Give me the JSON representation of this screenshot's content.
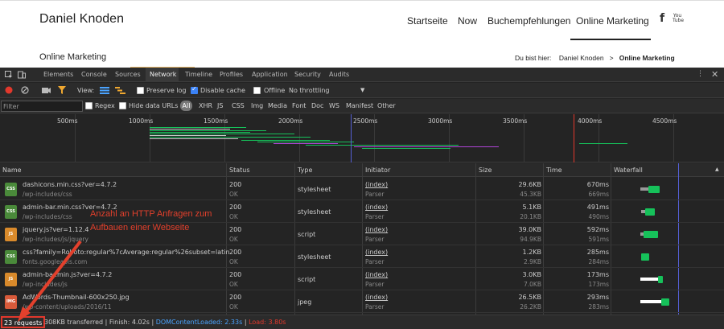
{
  "site": {
    "logo": "Daniel Knoden",
    "nav": [
      "Startseite",
      "Now",
      "Buchempfehlungen",
      "Online Marketing"
    ],
    "social": [
      "facebook-icon",
      "youtube-icon"
    ],
    "youtube_text": "You Tube",
    "facebook_glyph": "f",
    "subtitle": "Online Marketing",
    "breadcrumb_prefix": "Du bist hier:",
    "breadcrumb_home": "Daniel Knoden",
    "breadcrumb_sep": ">",
    "breadcrumb_current": "Online Marketing"
  },
  "devtools": {
    "tabs": [
      "Elements",
      "Console",
      "Sources",
      "Network",
      "Timeline",
      "Profiles",
      "Application",
      "Security",
      "Audits"
    ],
    "active_tab": "Network",
    "toolbar": {
      "view_label": "View:",
      "preserve_log": "Preserve log",
      "disable_cache": "Disable cache",
      "offline": "Offline",
      "throttling": "No throttling"
    },
    "filter": {
      "placeholder": "Filter",
      "regex": "Regex",
      "hide_data_urls": "Hide data URLs",
      "types": [
        "All",
        "XHR",
        "JS",
        "CSS",
        "Img",
        "Media",
        "Font",
        "Doc",
        "WS",
        "Manifest",
        "Other"
      ]
    },
    "overview_ticks": [
      "500ms",
      "1000ms",
      "1500ms",
      "2000ms",
      "2500ms",
      "3000ms",
      "3500ms",
      "4000ms",
      "4500ms"
    ],
    "columns": [
      "Name",
      "Status",
      "Type",
      "Initiator",
      "Size",
      "Time",
      "Waterfall"
    ],
    "rows": [
      {
        "name": "dashicons.min.css?ver=4.7.2",
        "path": "/wp-includes/css",
        "status": "200",
        "status_text": "OK",
        "type": "stylesheet",
        "initiator": "(index)",
        "initiator_sub": "Parser",
        "size": "29.6KB",
        "size_sub": "45.3KB",
        "time": "670ms",
        "time_sub": "669ms",
        "icon": "css-file-icon"
      },
      {
        "name": "admin-bar.min.css?ver=4.7.2",
        "path": "/wp-includes/css",
        "status": "200",
        "status_text": "OK",
        "type": "stylesheet",
        "initiator": "(index)",
        "initiator_sub": "Parser",
        "size": "5.1KB",
        "size_sub": "20.1KB",
        "time": "491ms",
        "time_sub": "490ms",
        "icon": "css-file-icon"
      },
      {
        "name": "jquery.js?ver=1.12.4",
        "path": "/wp-includes/js/jquery",
        "status": "200",
        "status_text": "OK",
        "type": "script",
        "initiator": "(index)",
        "initiator_sub": "Parser",
        "size": "39.0KB",
        "size_sub": "94.9KB",
        "time": "592ms",
        "time_sub": "591ms",
        "icon": "js-file-icon"
      },
      {
        "name": "css?family=Roboto:regular%7cAverage:regular%26subset=latin",
        "path": "fonts.googleapis.com",
        "status": "200",
        "status_text": "OK",
        "type": "stylesheet",
        "initiator": "(index)",
        "initiator_sub": "Parser",
        "size": "1.2KB",
        "size_sub": "2.9KB",
        "time": "285ms",
        "time_sub": "284ms",
        "icon": "css-file-icon"
      },
      {
        "name": "admin-bar.min.js?ver=4.7.2",
        "path": "/wp-includes/js",
        "status": "200",
        "status_text": "OK",
        "type": "script",
        "initiator": "(index)",
        "initiator_sub": "Parser",
        "size": "3.0KB",
        "size_sub": "7.0KB",
        "time": "173ms",
        "time_sub": "173ms",
        "icon": "js-file-icon"
      },
      {
        "name": "AdWords-Thumbnail-600x250.jpg",
        "path": "/wp-content/uploads/2016/11",
        "status": "200",
        "status_text": "OK",
        "type": "jpeg",
        "initiator": "(index)",
        "initiator_sub": "Parser",
        "size": "26.5KB",
        "size_sub": "26.2KB",
        "time": "293ms",
        "time_sub": "283ms",
        "icon": "image-file-icon"
      }
    ],
    "status_bar": {
      "requests": "23 requests",
      "transferred": "308KB transferred",
      "finish": "Finish: 4.02s",
      "dom_content_loaded": "DOMContentLoaded: 2.33s",
      "load": "Load: 3.80s"
    }
  },
  "annotation": {
    "line1": "Anzahl an HTTP Anfragen zum",
    "line2": "Aufbauen einer Webseite",
    "color": "#e3402c"
  },
  "colors": {
    "accent_green": "#16c15a",
    "dom_blue": "#4aa3ff",
    "load_red": "#e2382c"
  }
}
